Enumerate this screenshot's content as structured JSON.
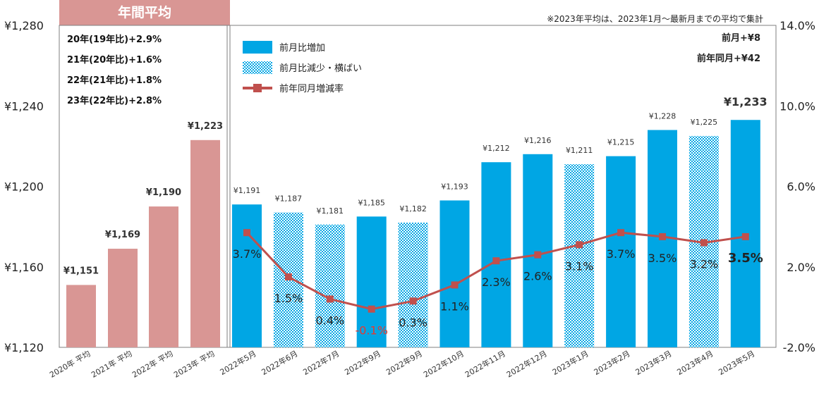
{
  "chart_data": {
    "type": "bar",
    "title": "",
    "annual_header": "年間平均",
    "note": "※2023年平均は、2023年1月～最新月までの平均で集計",
    "change_notes": [
      "前月+¥8",
      "前年同月+¥42"
    ],
    "annual_notes": [
      "20年(19年比)+2.9%",
      "21年(20年比)+1.6%",
      "22年(21年比)+1.8%",
      "23年(22年比)+2.8%"
    ],
    "categories": [
      "2020年 平均",
      "2021年 平均",
      "2022年 平均",
      "2023年 平均",
      "2022年5月",
      "2022年6月",
      "2022年7月",
      "2022年9月",
      "2022年9月",
      "2022年10月",
      "2022年11月",
      "2022年12月",
      "2023年1月",
      "2023年2月",
      "2023年3月",
      "2023年4月",
      "2023年5月"
    ],
    "bar_values": [
      1151,
      1169,
      1190,
      1223,
      1191,
      1187,
      1181,
      1185,
      1182,
      1193,
      1212,
      1216,
      1211,
      1215,
      1228,
      1225,
      1233
    ],
    "bar_labels": [
      "¥1,151",
      "¥1,169",
      "¥1,190",
      "¥1,223",
      "¥1,191",
      "¥1,187",
      "¥1,181",
      "¥1,185",
      "¥1,182",
      "¥1,193",
      "¥1,212",
      "¥1,216",
      "¥1,211",
      "¥1,215",
      "¥1,228",
      "¥1,225",
      "¥1,233"
    ],
    "bar_kinds": [
      "annual",
      "annual",
      "annual",
      "annual",
      "increase",
      "decrease",
      "decrease",
      "increase",
      "decrease",
      "increase",
      "increase",
      "increase",
      "decrease",
      "increase",
      "increase",
      "decrease",
      "increase"
    ],
    "line_series": {
      "name": "前年同月増減率",
      "values": [
        3.7,
        1.5,
        0.4,
        -0.1,
        0.3,
        1.1,
        2.3,
        2.6,
        3.1,
        3.7,
        3.5,
        3.2,
        3.5
      ],
      "labels": [
        "3.7%",
        "1.5%",
        "0.4%",
        "-0.1%",
        "0.3%",
        "1.1%",
        "2.3%",
        "2.6%",
        "3.1%",
        "3.7%",
        "3.5%",
        "3.2%",
        "3.5%"
      ]
    },
    "legend": [
      "前月比増加",
      "前月比減少・横ばい",
      "前年同月増減率"
    ],
    "legend_position": "top-left",
    "y_left": {
      "ylim": [
        1120,
        1280
      ],
      "ticks": [
        "¥1,120",
        "¥1,160",
        "¥1,200",
        "¥1,240",
        "¥1,280"
      ],
      "tick_values": [
        1120,
        1160,
        1200,
        1240,
        1280
      ]
    },
    "y_right": {
      "ylim": [
        -2.0,
        14.0
      ],
      "ticks": [
        "-2.0%",
        "2.0%",
        "6.0%",
        "10.0%",
        "14.0%"
      ],
      "tick_values": [
        -2,
        2,
        6,
        10,
        14
      ]
    },
    "grid": false,
    "colors": {
      "annual": "#d99694",
      "annual_header": "#d99694",
      "increase": "#00a6e4",
      "decrease": "#00a6e4",
      "line": "#c0504d",
      "negative_label": "#e8382f",
      "text": "#333333"
    }
  }
}
